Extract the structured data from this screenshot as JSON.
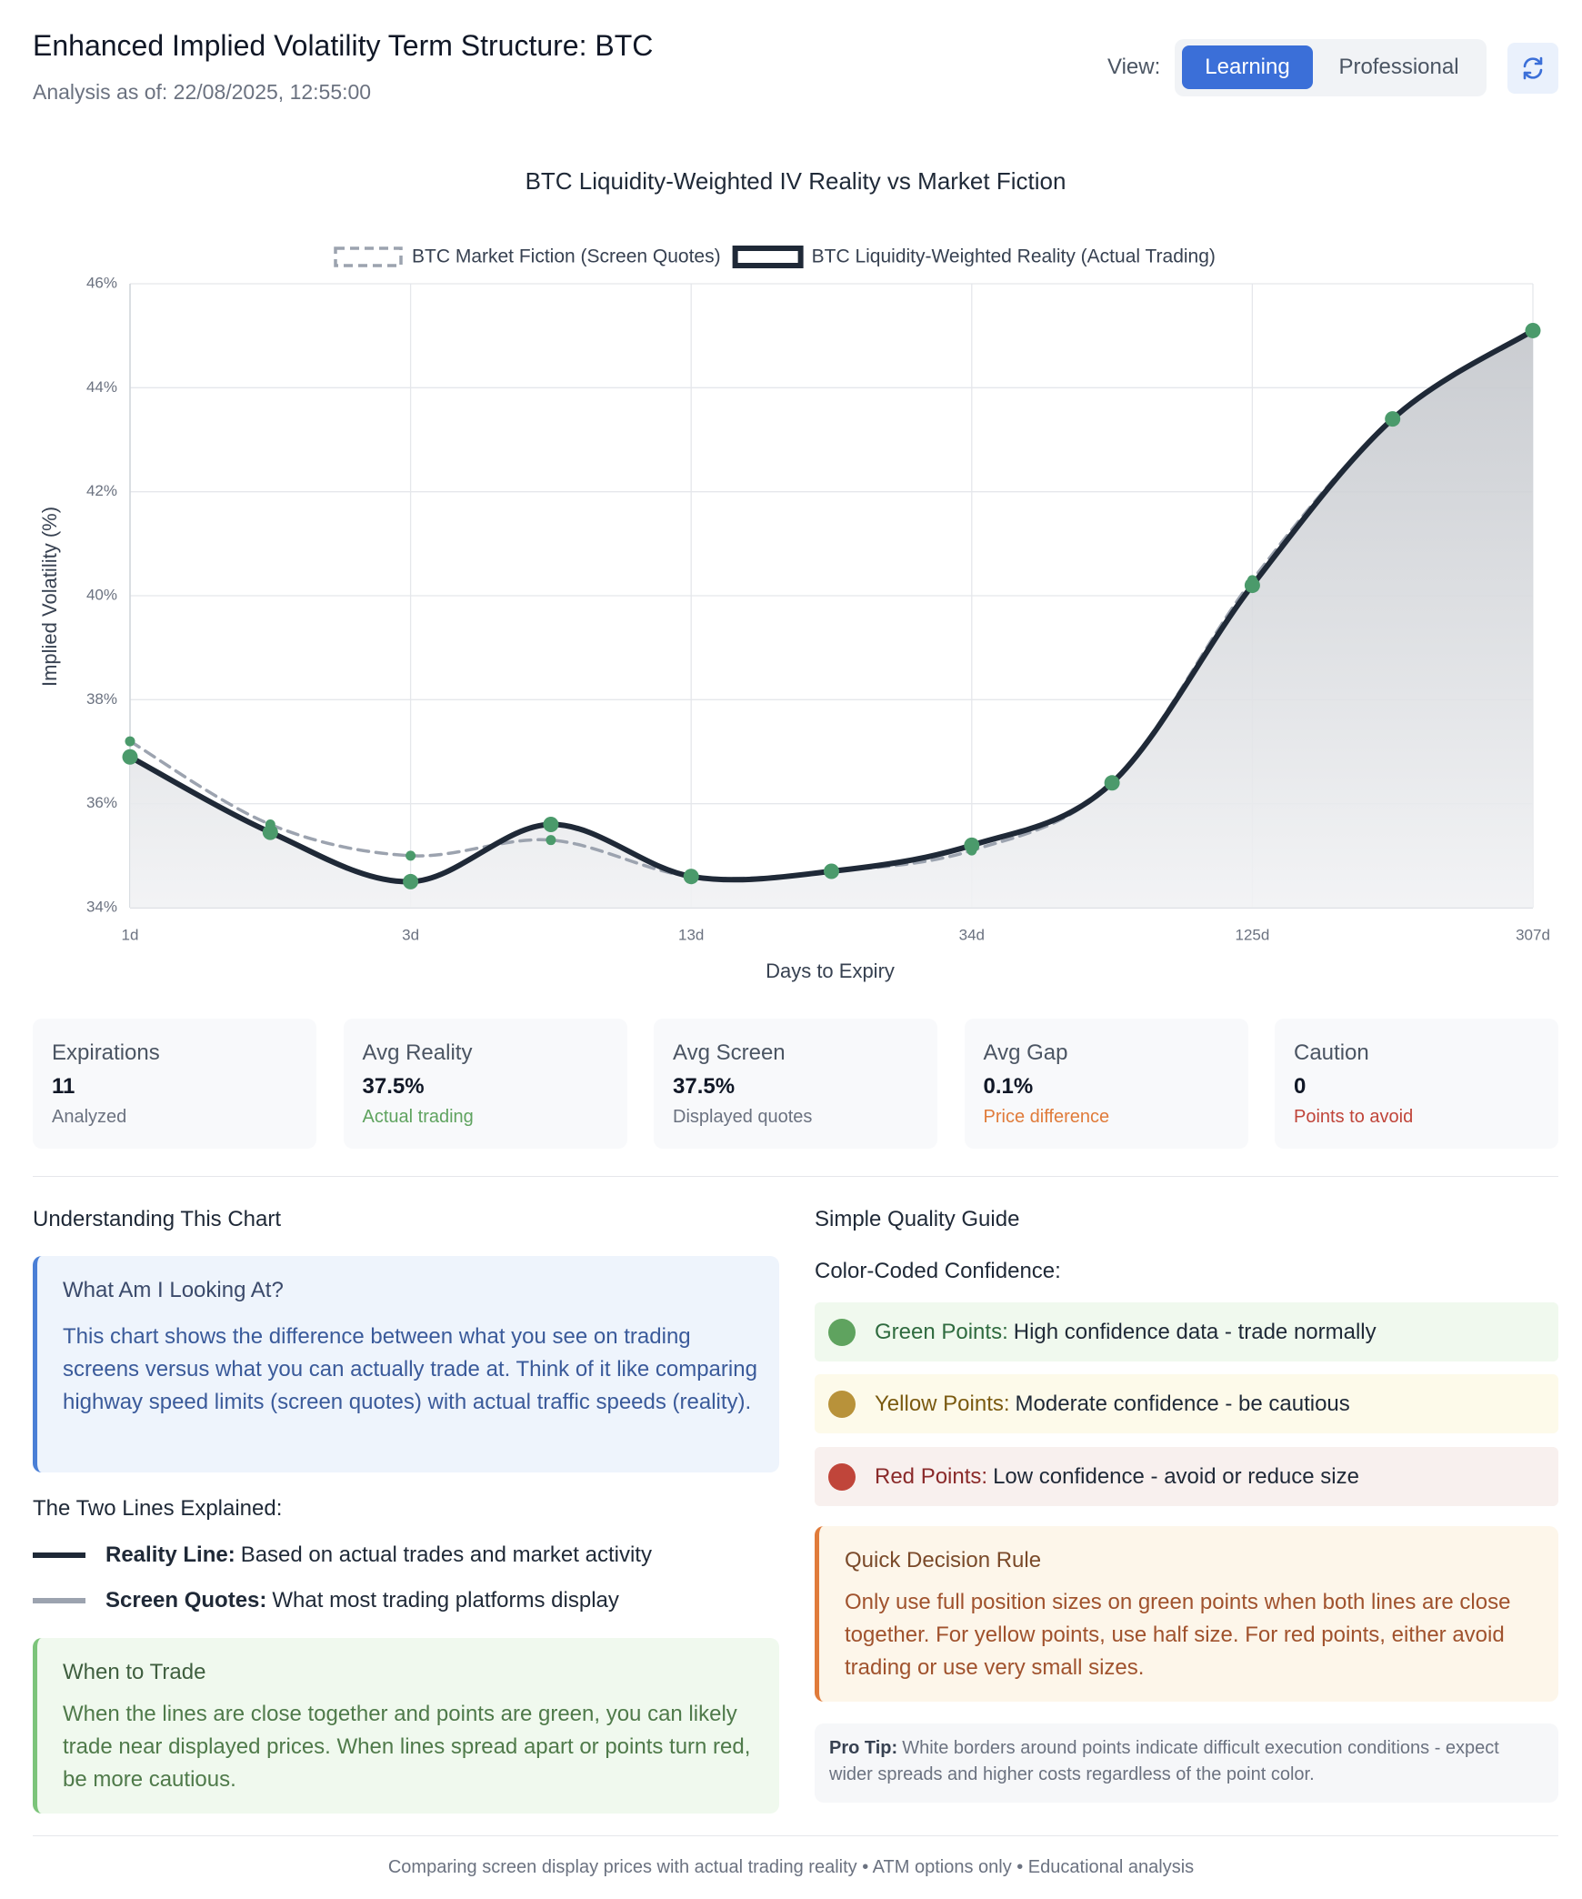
{
  "header": {
    "title": "Enhanced Implied Volatility Term Structure: BTC",
    "subtitle": "Analysis as of: 22/08/2025, 12:55:00",
    "view_label": "View:",
    "view_options": [
      "Learning",
      "Professional"
    ]
  },
  "chart_data": {
    "type": "line",
    "title": "BTC Liquidity-Weighted IV Reality vs Market Fiction",
    "x_label": "Days to Expiry",
    "y_label": "Implied Volatility (%)",
    "categories": [
      "1d",
      null,
      "3d",
      null,
      "13d",
      null,
      "34d",
      null,
      "125d",
      null,
      "307d"
    ],
    "series": [
      {
        "name": "BTC Market Fiction (Screen Quotes)",
        "color": "#9ca3af",
        "dashed": true,
        "values": [
          37.2,
          35.6,
          35.0,
          35.3,
          34.6,
          34.7,
          35.1,
          36.4,
          40.3,
          43.4,
          45.1
        ]
      },
      {
        "name": "BTC Liquidity-Weighted Reality (Actual Trading)",
        "color": "#1f2937",
        "dashed": false,
        "values": [
          36.9,
          35.45,
          34.5,
          35.6,
          34.6,
          34.7,
          35.2,
          36.4,
          40.2,
          43.4,
          45.1
        ]
      }
    ],
    "point_color": "#4b9a6b",
    "ylim": [
      34,
      46
    ],
    "yticks": [
      {
        "value": 34,
        "label": "34%"
      },
      {
        "value": 36,
        "label": "36%"
      },
      {
        "value": 38,
        "label": "38%"
      },
      {
        "value": 40,
        "label": "40%"
      },
      {
        "value": 42,
        "label": "42%"
      },
      {
        "value": 44,
        "label": "44%"
      },
      {
        "value": 46,
        "label": "46%"
      }
    ],
    "grid": true,
    "legend": "top"
  },
  "stats": [
    {
      "label": "Expirations",
      "value": "11",
      "note": "Analyzed"
    },
    {
      "label": "Avg Reality",
      "value": "37.5%",
      "note": "Actual trading"
    },
    {
      "label": "Avg Screen",
      "value": "37.5%",
      "note": "Displayed quotes"
    },
    {
      "label": "Avg Gap",
      "value": "0.1%",
      "note": "Price difference"
    },
    {
      "label": "Caution",
      "value": "0",
      "note": "Points to avoid"
    }
  ],
  "understanding": {
    "title": "Understanding This Chart",
    "box_title": "What Am I Looking At?",
    "box_text": "This chart shows the difference between what you see on trading screens versus what you can actually trade at. Think of it like comparing highway speed limits (screen quotes) with actual traffic speeds (reality)."
  },
  "lines": {
    "title": "The Two Lines Explained:",
    "items": [
      {
        "label": "Reality Line:",
        "text": "Based on actual trades and market activity"
      },
      {
        "label": "Screen Quotes:",
        "text": "What most trading platforms display"
      }
    ]
  },
  "when_to_trade": {
    "title": "When to Trade",
    "text": "When the lines are close together and points are green, you can likely trade near displayed prices. When lines spread apart or points turn red, be more cautious."
  },
  "quality": {
    "title": "Simple Quality Guide",
    "subtitle": "Color-Coded Confidence:",
    "items": [
      {
        "label": "Green Points:",
        "text": "High confidence data - trade normally"
      },
      {
        "label": "Yellow Points:",
        "text": "Moderate confidence - be cautious"
      },
      {
        "label": "Red Points:",
        "text": "Low confidence - avoid or reduce size"
      }
    ]
  },
  "decision": {
    "title": "Quick Decision Rule",
    "text": "Only use full position sizes on green points when both lines are close together. For yellow points, use half size. For red points, either avoid trading or use very small sizes."
  },
  "pro_tip": {
    "label": "Pro Tip:",
    "text": "White borders around points indicate difficult execution conditions - expect wider spreads and higher costs regardless of the point color."
  },
  "footer": "Comparing screen display prices with actual trading reality • ATM options only • Educational analysis"
}
